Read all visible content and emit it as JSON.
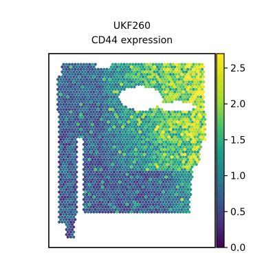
{
  "chart_data": {
    "type": "heatmap",
    "title": "UKF260",
    "subtitle": "CD44 expression",
    "xlabel": "",
    "ylabel": "",
    "colormap": "viridis",
    "colorbar": {
      "range": [
        0.0,
        2.7
      ],
      "ticks": [
        0.0,
        0.5,
        1.0,
        1.5,
        2.0,
        2.5
      ],
      "tick_labels": [
        "0.0",
        "0.5",
        "1.0",
        "1.5",
        "2.0",
        "2.5"
      ]
    },
    "grid": false,
    "legend": "colorbar-right"
  }
}
